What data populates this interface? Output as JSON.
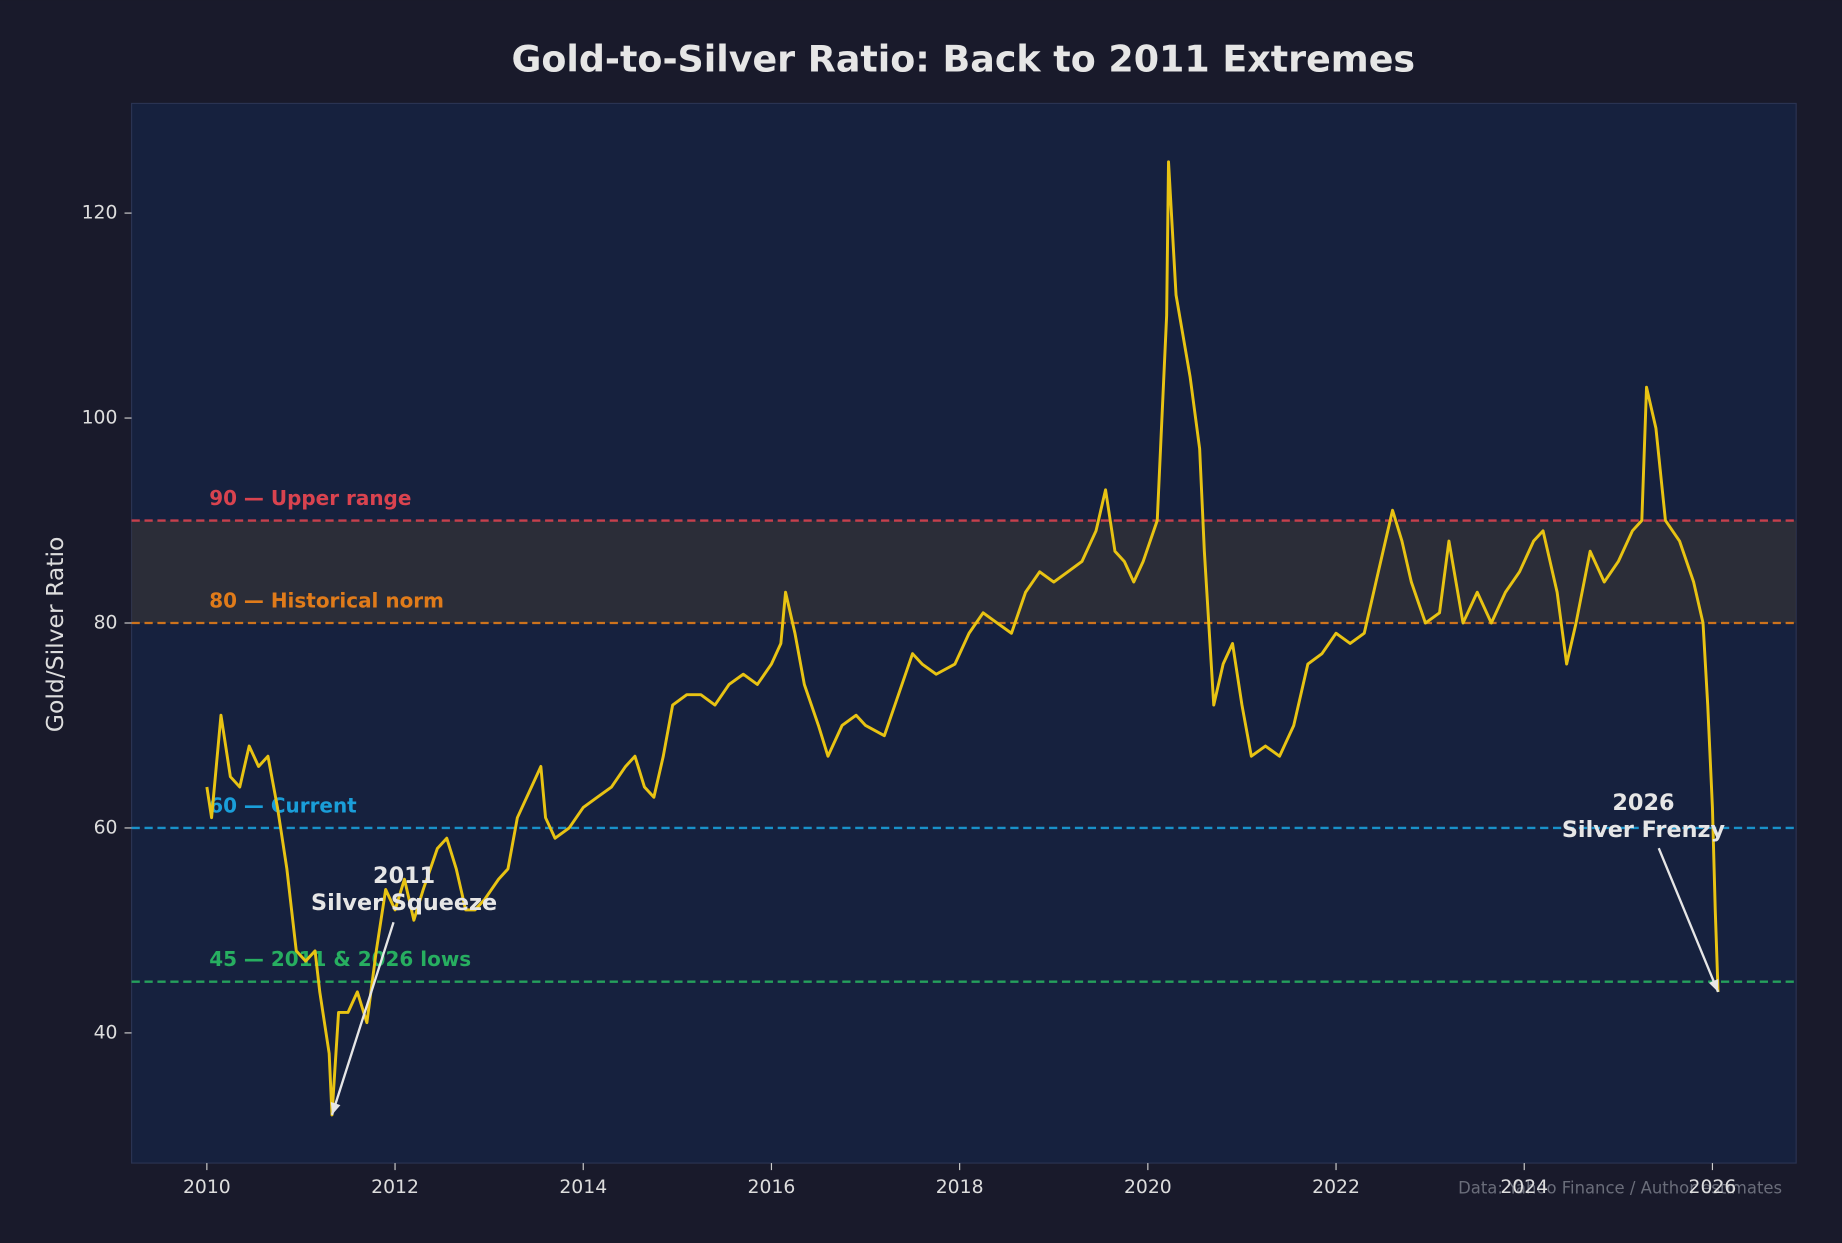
{
  "chart_data": {
    "type": "line",
    "title": "Gold-to-Silver Ratio: Back to 2011 Extremes",
    "y_label": "Gold/Silver Ratio",
    "source": "Data: Yahoo Finance / Author estimates",
    "xlim": [
      2009.2,
      2026.89
    ],
    "xticks": [
      2010,
      2012,
      2014,
      2016,
      2018,
      2020,
      2022,
      2024,
      2026
    ],
    "ylim": [
      27.3,
      130.7
    ],
    "yticks": [
      40,
      60,
      80,
      100,
      120
    ],
    "band": [
      80,
      90
    ],
    "band_color": "#3a3535",
    "reference_lines": [
      {
        "value": 90,
        "label": "90 — Upper range",
        "color": "#d9434f"
      },
      {
        "value": 80,
        "label": "80 — Historical norm",
        "color": "#e07b1a"
      },
      {
        "value": 60,
        "label": "60 — Current",
        "color": "#1a9ed9"
      },
      {
        "value": 45,
        "label": "45 — 2011 & 2026 lows",
        "color": "#27ae60"
      }
    ],
    "annotations": [
      {
        "lines": [
          "2011",
          "Silver Squeeze"
        ],
        "xy": [
          2011.33,
          32
        ]
      },
      {
        "lines": [
          "2026",
          "Silver Frenzy"
        ],
        "xy": [
          2026.06,
          44
        ]
      }
    ],
    "x": [
      2010.0,
      2010.05,
      2010.1,
      2010.15,
      2010.25,
      2010.35,
      2010.45,
      2010.55,
      2010.65,
      2010.75,
      2010.85,
      2010.95,
      2011.05,
      2011.15,
      2011.2,
      2011.3,
      2011.33,
      2011.4,
      2011.5,
      2011.6,
      2011.7,
      2011.8,
      2011.9,
      2012.0,
      2012.1,
      2012.2,
      2012.3,
      2012.45,
      2012.55,
      2012.65,
      2012.75,
      2012.85,
      2012.95,
      2013.1,
      2013.2,
      2013.3,
      2013.45,
      2013.55,
      2013.6,
      2013.7,
      2013.85,
      2014.0,
      2014.15,
      2014.3,
      2014.45,
      2014.55,
      2014.65,
      2014.75,
      2014.85,
      2014.95,
      2015.1,
      2015.25,
      2015.4,
      2015.55,
      2015.7,
      2015.85,
      2016.0,
      2016.1,
      2016.15,
      2016.25,
      2016.35,
      2016.5,
      2016.6,
      2016.75,
      2016.9,
      2017.0,
      2017.2,
      2017.35,
      2017.5,
      2017.6,
      2017.75,
      2017.95,
      2018.1,
      2018.25,
      2018.4,
      2018.55,
      2018.7,
      2018.85,
      2019.0,
      2019.15,
      2019.3,
      2019.45,
      2019.55,
      2019.65,
      2019.75,
      2019.85,
      2019.95,
      2020.1,
      2020.2,
      2020.22,
      2020.3,
      2020.45,
      2020.55,
      2020.6,
      2020.7,
      2020.8,
      2020.9,
      2021.0,
      2021.1,
      2021.25,
      2021.4,
      2021.55,
      2021.7,
      2021.85,
      2022.0,
      2022.15,
      2022.3,
      2022.45,
      2022.6,
      2022.7,
      2022.8,
      2022.95,
      2023.1,
      2023.2,
      2023.35,
      2023.5,
      2023.65,
      2023.8,
      2023.95,
      2024.1,
      2024.2,
      2024.35,
      2024.45,
      2024.55,
      2024.7,
      2024.85,
      2025.0,
      2025.15,
      2025.25,
      2025.3,
      2025.4,
      2025.5,
      2025.65,
      2025.8,
      2025.9,
      2025.95,
      2026.0,
      2026.03,
      2026.06
    ],
    "series": [
      {
        "name": "Gold/Silver Ratio",
        "color": "#e8c313",
        "values": [
          64,
          61,
          66,
          71,
          65,
          64,
          68,
          66,
          67,
          62,
          56,
          48,
          47,
          48,
          44,
          38,
          32,
          42,
          42,
          44,
          41,
          48,
          54,
          52,
          55,
          51,
          54,
          58,
          59,
          56,
          52,
          52,
          53,
          55,
          56,
          61,
          64,
          66,
          61,
          59,
          60,
          62,
          63,
          64,
          66,
          67,
          64,
          63,
          67,
          72,
          73,
          73,
          72,
          74,
          75,
          74,
          76,
          78,
          83,
          79,
          74,
          70,
          67,
          70,
          71,
          70,
          69,
          73,
          77,
          76,
          75,
          76,
          79,
          81,
          80,
          79,
          83,
          85,
          84,
          85,
          86,
          89,
          93,
          87,
          86,
          84,
          86,
          90,
          110,
          125,
          112,
          104,
          97,
          87,
          72,
          76,
          78,
          72,
          67,
          68,
          67,
          70,
          76,
          77,
          79,
          78,
          79,
          85,
          91,
          88,
          84,
          80,
          81,
          88,
          80,
          83,
          80,
          83,
          85,
          88,
          89,
          83,
          76,
          80,
          87,
          84,
          86,
          89,
          90,
          103,
          99,
          90,
          88,
          84,
          80,
          72,
          62,
          52,
          44
        ]
      }
    ]
  }
}
